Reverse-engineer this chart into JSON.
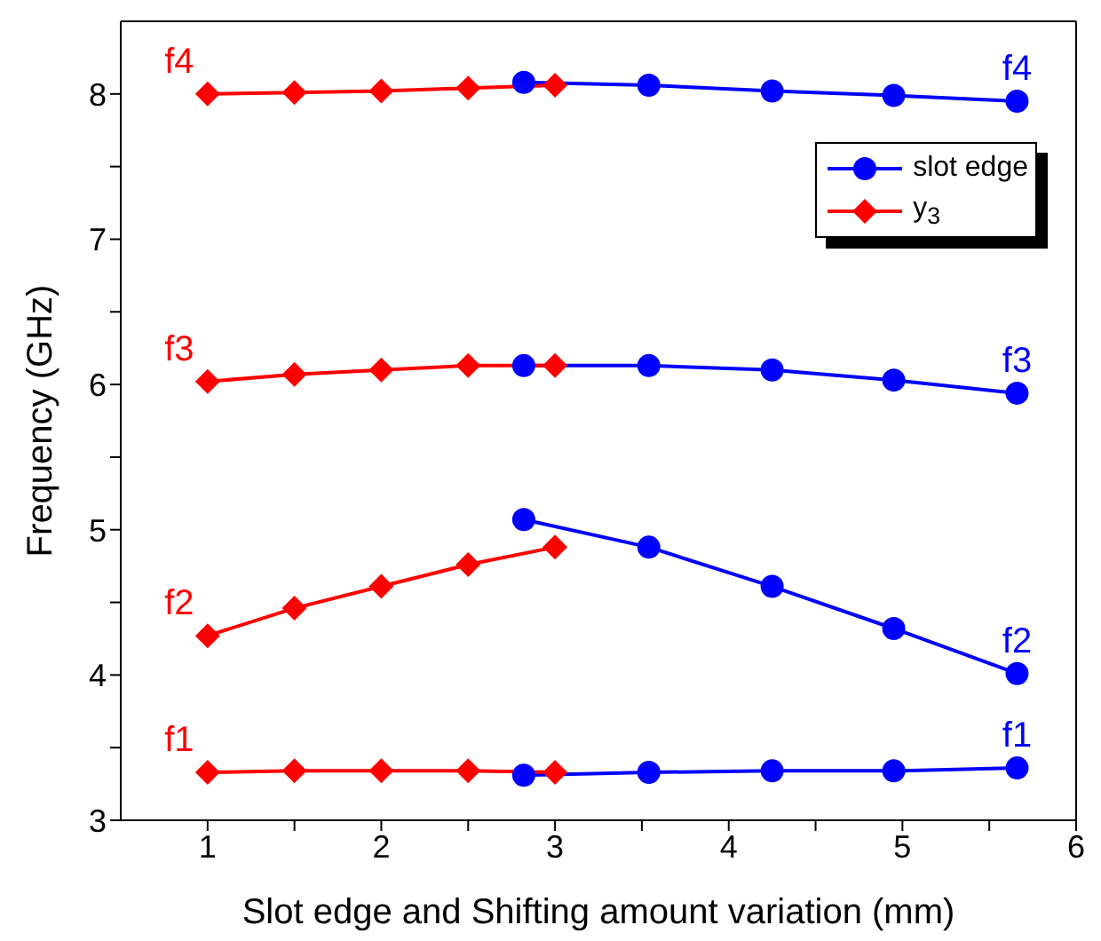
{
  "chart_data": {
    "type": "line",
    "xlabel": "Slot edge and Shifting amount variation (mm)",
    "ylabel": "Frequency (GHz)",
    "xlim": [
      0.5,
      6
    ],
    "xticks": [
      1,
      {
        "value": 1.5,
        "label": null
      },
      2,
      {
        "value": 2.5,
        "label": null
      },
      3,
      {
        "value": 3.5,
        "label": null
      },
      4,
      {
        "value": 4.5,
        "label": null
      },
      5,
      {
        "value": 5.5,
        "label": null
      },
      6
    ],
    "ylim": [
      3,
      8.5
    ],
    "yticks": [
      3,
      {
        "value": 3.5,
        "label": null
      },
      4,
      {
        "value": 4.5,
        "label": null
      },
      5,
      {
        "value": 5.5,
        "label": null
      },
      6,
      {
        "value": 6.5,
        "label": null
      },
      7,
      {
        "value": 7.5,
        "label": null
      },
      8
    ],
    "legend": "top right",
    "series": [
      {
        "name": "slot edge",
        "color": "#0000ff",
        "marker": "circle",
        "x": [
          2.82,
          3.54,
          4.25,
          4.95,
          5.66
        ],
        "values": [
          8.08,
          8.06,
          8.02,
          7.99,
          7.95
        ]
      },
      {
        "color": "#0000ff",
        "marker": "circle",
        "x": [
          2.82,
          3.54,
          4.25,
          4.95,
          5.66
        ],
        "values": [
          6.13,
          6.13,
          6.1,
          6.03,
          5.94
        ]
      },
      {
        "color": "#0000ff",
        "marker": "circle",
        "x": [
          2.82,
          3.54,
          4.25,
          4.95,
          5.66
        ],
        "values": [
          5.07,
          4.88,
          4.61,
          4.32,
          4.01
        ]
      },
      {
        "color": "#0000ff",
        "marker": "circle",
        "x": [
          2.82,
          3.54,
          4.25,
          4.95,
          5.66
        ],
        "values": [
          3.31,
          3.33,
          3.34,
          3.34,
          3.36
        ]
      },
      {
        "name": "y$_{3}$",
        "color": "#ff0000",
        "marker": "diamond",
        "x": [
          1,
          1.5,
          2,
          2.5,
          3
        ],
        "values": [
          8.0,
          8.01,
          8.02,
          8.04,
          8.06
        ]
      },
      {
        "color": "#ff0000",
        "marker": "diamond",
        "x": [
          1,
          1.5,
          2,
          2.5,
          3
        ],
        "values": [
          6.02,
          6.07,
          6.1,
          6.13,
          6.13
        ]
      },
      {
        "color": "#ff0000",
        "marker": "diamond",
        "x": [
          1,
          1.5,
          2,
          2.5,
          3
        ],
        "values": [
          4.27,
          4.46,
          4.61,
          4.76,
          4.88
        ]
      },
      {
        "color": "#ff0000",
        "marker": "diamond",
        "x": [
          1,
          1.5,
          2,
          2.5,
          3
        ],
        "values": [
          3.33,
          3.34,
          3.34,
          3.34,
          3.33
        ]
      }
    ],
    "annotations": [
      "f4",
      "f3",
      "f2",
      "f1",
      "f4",
      "f3",
      "f2",
      "f1"
    ]
  }
}
